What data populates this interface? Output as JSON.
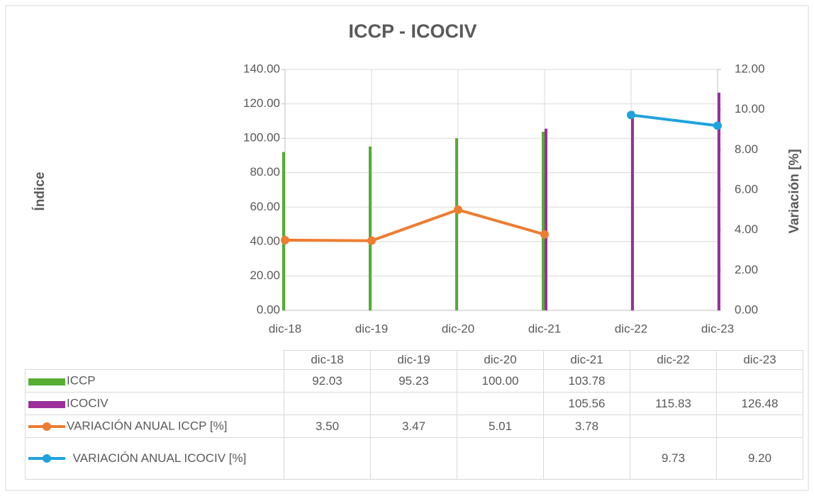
{
  "chart_data": {
    "type": "bar_line_table",
    "title": "ICCP - ICOCIV",
    "y_label": "Índice",
    "y2_label": "Variación [%]",
    "categories": [
      "dic-18",
      "dic-19",
      "dic-20",
      "dic-21",
      "dic-22",
      "dic-23"
    ],
    "series": [
      {
        "name": "ICCP",
        "type": "bar",
        "color": "#55ad33",
        "values": [
          92.03,
          95.23,
          100.0,
          103.78,
          null,
          null
        ],
        "value_labels": [
          "92.03",
          "95.23",
          "100.00",
          "103.78",
          null,
          null
        ]
      },
      {
        "name": "ICOCIV",
        "type": "bar",
        "color": "#9c2f9a",
        "values": [
          null,
          null,
          null,
          105.56,
          115.83,
          126.48
        ],
        "value_labels": [
          null,
          null,
          null,
          "105.56",
          "115.83",
          "126.48"
        ]
      },
      {
        "name": "VARIACIÓN ANUAL ICCP [%]",
        "type": "line",
        "axis": "y2",
        "color": "#ed7d31",
        "values": [
          3.5,
          3.47,
          5.01,
          3.78,
          null,
          null
        ],
        "value_labels": [
          "3.50",
          "3.47",
          "5.01",
          "3.78",
          null,
          null
        ]
      },
      {
        "name": "VARIACIÓN ANUAL ICOCIV [%]",
        "type": "line",
        "axis": "y2",
        "color": "#1fa3dd",
        "values": [
          null,
          null,
          null,
          null,
          9.73,
          9.2
        ],
        "value_labels": [
          null,
          null,
          null,
          null,
          "9.73",
          "9.20"
        ]
      }
    ],
    "ylim": [
      0,
      140
    ],
    "yticks": [
      {
        "value": 0,
        "label": "0.00"
      },
      {
        "value": 20,
        "label": "20.00"
      },
      {
        "value": 40,
        "label": "40.00"
      },
      {
        "value": 60,
        "label": "60.00"
      },
      {
        "value": 80,
        "label": "80.00"
      },
      {
        "value": 100,
        "label": "100.00"
      },
      {
        "value": 120,
        "label": "120.00"
      },
      {
        "value": 140,
        "label": "140.00"
      }
    ],
    "y2lim": [
      0,
      12
    ],
    "y2ticks": [
      {
        "value": 0,
        "label": "0.00"
      },
      {
        "value": 2,
        "label": "2.00"
      },
      {
        "value": 4,
        "label": "4.00"
      },
      {
        "value": 6,
        "label": "6.00"
      },
      {
        "value": 8,
        "label": "8.00"
      },
      {
        "value": 10,
        "label": "10.00"
      },
      {
        "value": 12,
        "label": "12.00"
      }
    ],
    "grid": true
  }
}
